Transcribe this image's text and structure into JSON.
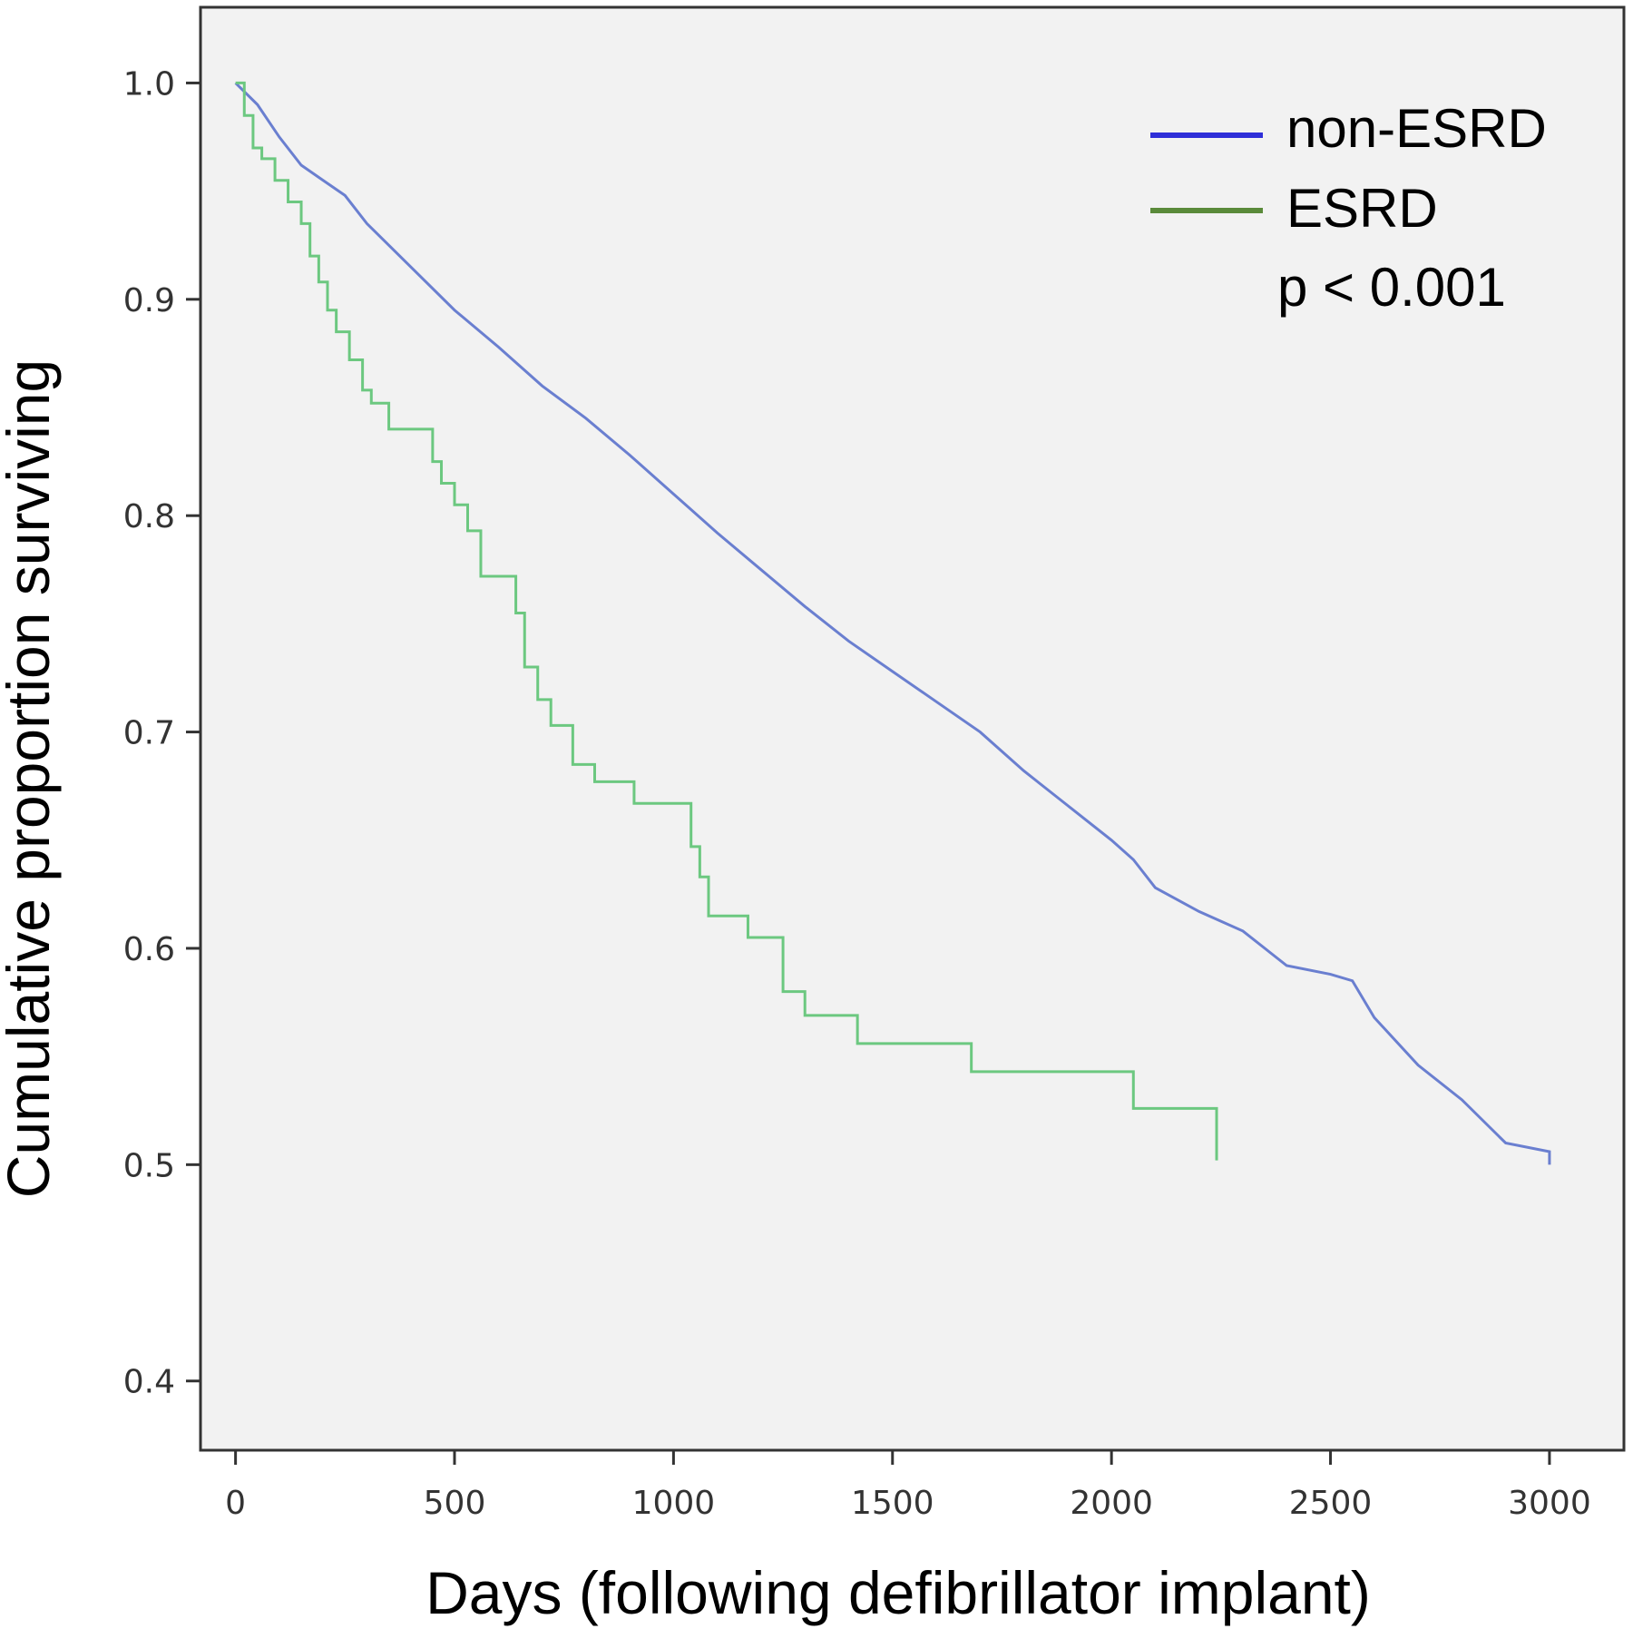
{
  "chart_data": {
    "type": "line",
    "title": "",
    "xlabel": "Days (following defibrillator implant)",
    "ylabel": "Cumulative proportion surviving",
    "xlim": [
      -80,
      3170
    ],
    "ylim": [
      0.368,
      1.035
    ],
    "x_ticks": [
      0,
      500,
      1000,
      1500,
      2000,
      2500,
      3000
    ],
    "x_tick_labels": [
      "0",
      "500",
      "1000",
      "1500",
      "2000",
      "2500",
      "3000"
    ],
    "y_ticks": [
      0.4,
      0.5,
      0.6,
      0.7,
      0.8,
      0.9,
      1.0
    ],
    "y_tick_labels": [
      "0.4",
      "0.5",
      "0.6",
      "0.7",
      "0.8",
      "0.9",
      "1.0"
    ],
    "grid": false,
    "plot_background": "#f2f2f2",
    "legend_position": "top-right",
    "legend": [
      {
        "label": "non-ESRD",
        "color": "#2f2fd8"
      },
      {
        "label": "ESRD",
        "color": "#5a8a3a"
      }
    ],
    "annotation": "p < 0.001",
    "series": [
      {
        "name": "non-ESRD",
        "color": "#6a7fd0",
        "step": false,
        "x": [
          0,
          50,
          100,
          150,
          200,
          250,
          300,
          400,
          500,
          600,
          700,
          800,
          900,
          1000,
          1100,
          1200,
          1300,
          1400,
          1500,
          1600,
          1700,
          1800,
          1900,
          2000,
          2050,
          2100,
          2200,
          2300,
          2400,
          2500,
          2550,
          2600,
          2700,
          2800,
          2900,
          3000,
          3000
        ],
        "y": [
          1.0,
          0.99,
          0.975,
          0.962,
          0.955,
          0.948,
          0.935,
          0.915,
          0.895,
          0.878,
          0.86,
          0.845,
          0.828,
          0.81,
          0.792,
          0.775,
          0.758,
          0.742,
          0.728,
          0.714,
          0.7,
          0.682,
          0.666,
          0.65,
          0.641,
          0.628,
          0.617,
          0.608,
          0.592,
          0.588,
          0.585,
          0.568,
          0.546,
          0.53,
          0.51,
          0.506,
          0.5
        ]
      },
      {
        "name": "ESRD",
        "color": "#6cc880",
        "step": true,
        "x": [
          0,
          20,
          40,
          60,
          90,
          120,
          150,
          170,
          190,
          210,
          230,
          260,
          290,
          310,
          350,
          450,
          470,
          500,
          530,
          560,
          640,
          660,
          690,
          720,
          770,
          820,
          910,
          1040,
          1060,
          1080,
          1170,
          1250,
          1300,
          1420,
          1680,
          2050,
          2240,
          2240
        ],
        "y": [
          1.0,
          0.985,
          0.97,
          0.965,
          0.955,
          0.945,
          0.935,
          0.92,
          0.908,
          0.895,
          0.885,
          0.872,
          0.858,
          0.852,
          0.84,
          0.825,
          0.815,
          0.805,
          0.793,
          0.772,
          0.755,
          0.73,
          0.715,
          0.703,
          0.685,
          0.677,
          0.667,
          0.647,
          0.633,
          0.615,
          0.605,
          0.58,
          0.569,
          0.556,
          0.543,
          0.526,
          0.51,
          0.502
        ]
      }
    ]
  }
}
